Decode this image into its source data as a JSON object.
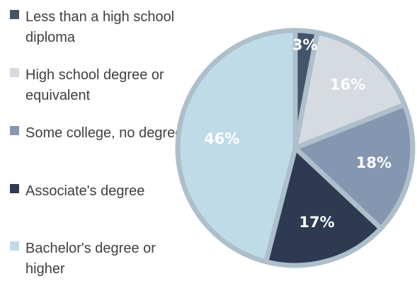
{
  "chart_data": {
    "type": "pie",
    "title": "",
    "legend_position": "left",
    "start_angle": "12 o'clock",
    "direction": "clockwise",
    "slices": [
      {
        "label": "Less than a high school diploma",
        "value": 3,
        "value_label": "3%",
        "color": "#44546a",
        "text_color": "#ffffff"
      },
      {
        "label": "High school degree or equivalent",
        "value": 16,
        "value_label": "16%",
        "color": "#d6dbe2",
        "text_color": "#ffffff"
      },
      {
        "label": "Some college, no degree",
        "value": 18,
        "value_label": "18%",
        "color": "#8496b0",
        "text_color": "#ffffff"
      },
      {
        "label": "Associate's degree",
        "value": 17,
        "value_label": "17%",
        "color": "#2e3a52",
        "text_color": "#ffffff"
      },
      {
        "label": "Bachelor's degree or higher",
        "value": 46,
        "value_label": "46%",
        "color": "#bfdbe7",
        "text_color": "#ffffff"
      }
    ]
  }
}
